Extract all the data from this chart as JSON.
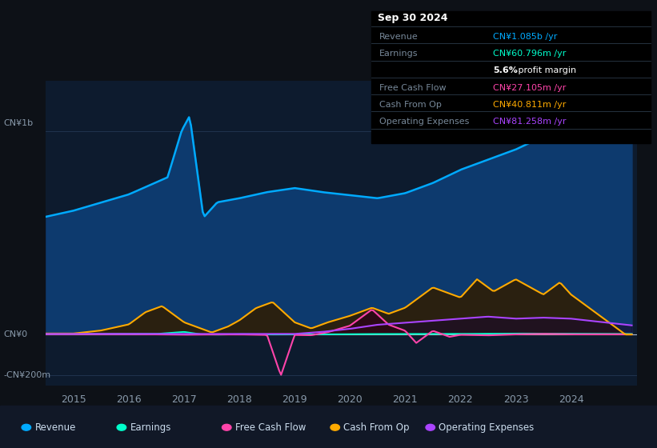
{
  "bg_color": "#0d1117",
  "plot_bg_color": "#0d1b2e",
  "revenue_fill_color": "#0a3a6e",
  "grid_color": "#253a55",
  "ylabel_top": "CN¥1b",
  "ylabel_zero": "CN¥0",
  "ylabel_neg": "-CN¥200m",
  "x_ticks": [
    2015,
    2016,
    2017,
    2018,
    2019,
    2020,
    2021,
    2022,
    2023,
    2024
  ],
  "ylim": [
    -250000000,
    1250000000
  ],
  "y_zero": 0,
  "y_1b": 1000000000,
  "y_neg200m": -200000000,
  "info_box": {
    "title": "Sep 30 2024",
    "rows": [
      {
        "label": "Revenue",
        "value": "CN¥1.085b /yr",
        "color": "#00aaff"
      },
      {
        "label": "Earnings",
        "value": "CN¥60.796m /yr",
        "color": "#00ffcc"
      },
      {
        "label": "",
        "value": "5.6% profit margin",
        "color": "#ffffff"
      },
      {
        "label": "Free Cash Flow",
        "value": "CN¥27.105m /yr",
        "color": "#ff44aa"
      },
      {
        "label": "Cash From Op",
        "value": "CN¥40.811m /yr",
        "color": "#ffaa00"
      },
      {
        "label": "Operating Expenses",
        "value": "CN¥81.258m /yr",
        "color": "#aa44ff"
      }
    ]
  },
  "legend": [
    {
      "label": "Revenue",
      "color": "#00aaff"
    },
    {
      "label": "Earnings",
      "color": "#00ffcc"
    },
    {
      "label": "Free Cash Flow",
      "color": "#ff44aa"
    },
    {
      "label": "Cash From Op",
      "color": "#ffaa00"
    },
    {
      "label": "Operating Expenses",
      "color": "#aa44ff"
    }
  ],
  "revenue_color": "#00aaff",
  "earnings_color": "#00ffcc",
  "fcf_color": "#ff44aa",
  "cashfromop_color": "#ffaa00",
  "opex_color": "#aa44ff"
}
